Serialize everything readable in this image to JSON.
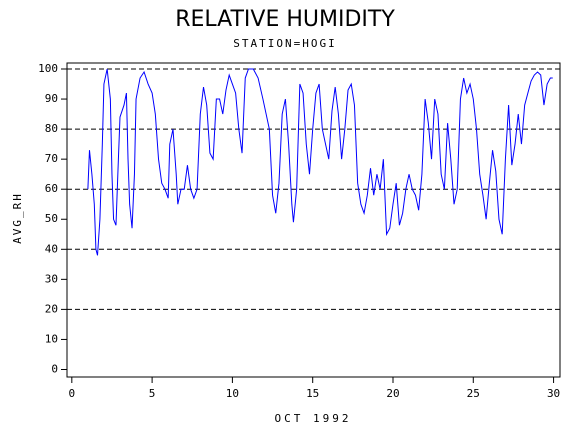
{
  "chart_data": {
    "type": "line",
    "title": "RELATIVE HUMIDITY",
    "subtitle": "STATION=HOGI",
    "ylabel": "AVG_RH",
    "xlabel": "OCT 1992",
    "xlim": [
      -0.3,
      30.4
    ],
    "ylim": [
      -2.5,
      102
    ],
    "xticks": [
      0,
      5,
      10,
      15,
      20,
      25,
      30
    ],
    "yticks": [
      0,
      10,
      20,
      30,
      40,
      50,
      60,
      70,
      80,
      90,
      100
    ],
    "ygrid": [
      20,
      40,
      60,
      80,
      100
    ],
    "series": [
      {
        "name": "AVG_RH",
        "color": "#0000ff",
        "x": [
          1.0,
          1.1,
          1.25,
          1.4,
          1.5,
          1.6,
          1.75,
          1.9,
          2.0,
          2.2,
          2.4,
          2.5,
          2.6,
          2.75,
          2.9,
          3.0,
          3.25,
          3.4,
          3.5,
          3.6,
          3.75,
          3.9,
          4.0,
          4.25,
          4.5,
          4.75,
          5.0,
          5.2,
          5.4,
          5.6,
          5.8,
          6.0,
          6.1,
          6.3,
          6.5,
          6.6,
          6.8,
          7.0,
          7.2,
          7.4,
          7.6,
          7.8,
          8.0,
          8.2,
          8.4,
          8.6,
          8.8,
          9.0,
          9.2,
          9.4,
          9.6,
          9.8,
          10.0,
          10.2,
          10.4,
          10.6,
          10.8,
          11.0,
          11.3,
          11.6,
          11.9,
          12.1,
          12.3,
          12.5,
          12.7,
          12.9,
          13.1,
          13.3,
          13.5,
          13.7,
          13.8,
          14.0,
          14.2,
          14.4,
          14.6,
          14.8,
          15.0,
          15.2,
          15.4,
          15.6,
          15.8,
          16.0,
          16.2,
          16.4,
          16.6,
          16.8,
          17.0,
          17.2,
          17.4,
          17.6,
          17.8,
          18.0,
          18.2,
          18.4,
          18.6,
          18.8,
          19.0,
          19.2,
          19.4,
          19.6,
          19.8,
          20.0,
          20.2,
          20.4,
          20.6,
          20.8,
          21.0,
          21.2,
          21.4,
          21.6,
          21.8,
          22.0,
          22.2,
          22.4,
          22.6,
          22.8,
          23.0,
          23.2,
          23.4,
          23.6,
          23.8,
          24.0,
          24.2,
          24.4,
          24.6,
          24.8,
          25.0,
          25.2,
          25.4,
          25.6,
          25.8,
          26.0,
          26.2,
          26.4,
          26.6,
          26.8,
          27.0,
          27.2,
          27.4,
          27.6,
          27.8,
          28.0,
          28.2,
          28.4,
          28.6,
          28.8,
          29.0,
          29.2,
          29.4,
          29.6,
          29.8,
          29.95
        ],
        "values": [
          60,
          73,
          65,
          55,
          40,
          38,
          50,
          75,
          95,
          100,
          90,
          65,
          50,
          48,
          70,
          84,
          88,
          92,
          70,
          55,
          47,
          65,
          90,
          97,
          99,
          95,
          92,
          85,
          70,
          62,
          60,
          57,
          75,
          80,
          65,
          55,
          60,
          60,
          68,
          60,
          57,
          60,
          85,
          94,
          88,
          72,
          70,
          90,
          90,
          85,
          93,
          98,
          95,
          92,
          80,
          72,
          97,
          100,
          100,
          97,
          90,
          85,
          80,
          58,
          52,
          62,
          85,
          90,
          75,
          55,
          49,
          60,
          95,
          92,
          75,
          65,
          80,
          92,
          95,
          80,
          75,
          70,
          86,
          94,
          85,
          70,
          80,
          93,
          95,
          88,
          62,
          55,
          52,
          58,
          67,
          58,
          65,
          60,
          70,
          45,
          47,
          55,
          62,
          48,
          52,
          60,
          65,
          60,
          58,
          53,
          65,
          90,
          82,
          70,
          90,
          85,
          65,
          60,
          82,
          70,
          55,
          60,
          90,
          97,
          92,
          95,
          90,
          80,
          65,
          58,
          50,
          62,
          73,
          66,
          50,
          45,
          70,
          88,
          68,
          75,
          85,
          75,
          88,
          92,
          96,
          98,
          99,
          98,
          88,
          95,
          97,
          97
        ]
      }
    ]
  }
}
